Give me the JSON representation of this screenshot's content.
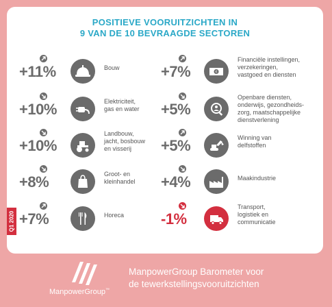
{
  "title_line1": "POSITIEVE VOORUITZICHTEN IN",
  "title_line2": "9 VAN DE 10 BEVRAAGDE SECTOREN",
  "quarter": "Q1 2020",
  "sectors": [
    {
      "pct": "+11%",
      "label": "Bouw",
      "direction": "up",
      "icon": "hard-hat-icon"
    },
    {
      "pct": "+10%",
      "label": "Elektriciteit,\ngas en water",
      "direction": "down",
      "icon": "plug-icon"
    },
    {
      "pct": "+10%",
      "label": "Landbouw,\njacht, bosbouw\nen visserij",
      "direction": "down",
      "icon": "tractor-icon"
    },
    {
      "pct": "+8%",
      "label": "Groot- en\nkleinhandel",
      "direction": "down",
      "icon": "shopping-bag-icon"
    },
    {
      "pct": "+7%",
      "label": "Horeca",
      "direction": "up",
      "icon": "cutlery-icon"
    },
    {
      "pct": "+7%",
      "label": "Financiële instellingen,\nverzekeringen,\nvastgoed en diensten",
      "direction": "up",
      "icon": "banknote-icon"
    },
    {
      "pct": "+5%",
      "label": "Openbare diensten,\nonderwijs, gezondheids-\nzorg, maatschappelijke\ndienstverlening",
      "direction": "down",
      "icon": "person-magnifier-icon"
    },
    {
      "pct": "+5%",
      "label": "Winning van\ndelfstoffen",
      "direction": "up",
      "icon": "excavator-icon"
    },
    {
      "pct": "+4%",
      "label": "Maakindustrie",
      "direction": "down",
      "icon": "factory-icon"
    },
    {
      "pct": "-1%",
      "label": "Transport,\nlogistiek en\ncommunicatie",
      "direction": "down-negative",
      "icon": "truck-icon"
    }
  ],
  "footer": {
    "line1": "ManpowerGroup Barometer voor",
    "line2": "de tewerkstellingsvooruitzichten",
    "logo_text": "ManpowerGroup",
    "logo_mark": "™"
  },
  "colors": {
    "accent": "#2aa8c7",
    "negative": "#d32f3f",
    "background": "#eea6a6",
    "text": "#6b6b6b"
  }
}
